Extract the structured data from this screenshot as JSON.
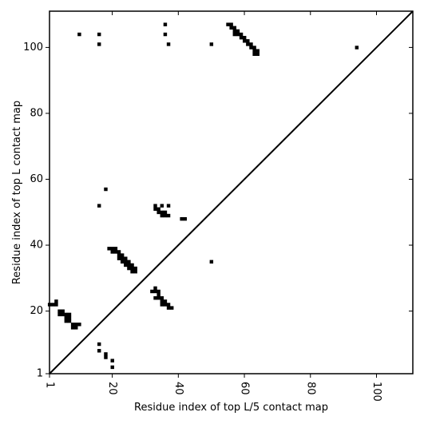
{
  "chart_data": {
    "type": "scatter",
    "xlabel": "Residue index of top L/5 contact map",
    "ylabel": "Residue index of top L contact map",
    "xlim": [
      1,
      111
    ],
    "ylim": [
      1,
      111
    ],
    "x_ticks": [
      1,
      20,
      40,
      60,
      80,
      100
    ],
    "y_ticks": [
      1,
      20,
      40,
      60,
      80,
      100
    ],
    "x_tick_labels": [
      "1",
      "20",
      "40",
      "60",
      "80",
      "100"
    ],
    "y_tick_labels": [
      "1",
      "20",
      "40",
      "60",
      "80",
      "100"
    ],
    "x_tick_rotation_deg": -90,
    "marker": "square",
    "marker_color": "#000000",
    "diagonal_line": true,
    "grid": false,
    "upper_triangle_top_L5": [
      [
        10,
        104
      ],
      [
        16,
        104
      ],
      [
        16,
        101
      ],
      [
        36,
        107
      ],
      [
        36,
        104
      ],
      [
        37,
        101
      ],
      [
        50,
        101
      ],
      [
        94,
        100
      ],
      [
        55,
        107
      ],
      [
        56,
        107
      ],
      [
        56,
        106
      ],
      [
        57,
        106
      ],
      [
        57,
        105
      ],
      [
        58,
        105
      ],
      [
        58,
        104
      ],
      [
        57,
        104
      ],
      [
        59,
        104
      ],
      [
        59,
        103
      ],
      [
        60,
        103
      ],
      [
        60,
        102
      ],
      [
        61,
        102
      ],
      [
        61,
        101
      ],
      [
        62,
        101
      ],
      [
        62,
        100
      ],
      [
        63,
        100
      ],
      [
        63,
        99
      ],
      [
        64,
        99
      ],
      [
        64,
        98
      ],
      [
        63,
        98
      ],
      [
        16,
        52
      ],
      [
        18,
        57
      ],
      [
        33,
        52
      ],
      [
        33,
        51
      ],
      [
        34,
        51
      ],
      [
        34,
        50
      ],
      [
        35,
        50
      ],
      [
        35,
        49
      ],
      [
        36,
        50
      ],
      [
        36,
        49
      ],
      [
        37,
        49
      ],
      [
        35,
        52
      ],
      [
        37,
        52
      ],
      [
        41,
        48
      ],
      [
        42,
        48
      ],
      [
        50,
        35
      ],
      [
        16,
        10
      ],
      [
        16,
        8
      ],
      [
        18,
        7
      ],
      [
        18,
        6
      ],
      [
        20,
        5
      ],
      [
        20,
        3
      ]
    ],
    "lower_triangle_top_L": [
      [
        1,
        22
      ],
      [
        2,
        22
      ],
      [
        3,
        23
      ],
      [
        3,
        22
      ],
      [
        4,
        20
      ],
      [
        4,
        19
      ],
      [
        5,
        20
      ],
      [
        5,
        19
      ],
      [
        6,
        18
      ],
      [
        6,
        17
      ],
      [
        7,
        18
      ],
      [
        7,
        17
      ],
      [
        8,
        16
      ],
      [
        8,
        15
      ],
      [
        9,
        16
      ],
      [
        9,
        15
      ],
      [
        10,
        16
      ],
      [
        6,
        19
      ],
      [
        7,
        19
      ],
      [
        19,
        39
      ],
      [
        20,
        39
      ],
      [
        21,
        39
      ],
      [
        20,
        38
      ],
      [
        21,
        38
      ],
      [
        22,
        38
      ],
      [
        22,
        37
      ],
      [
        23,
        37
      ],
      [
        22,
        36
      ],
      [
        23,
        36
      ],
      [
        24,
        36
      ],
      [
        23,
        35
      ],
      [
        24,
        35
      ],
      [
        25,
        35
      ],
      [
        24,
        34
      ],
      [
        25,
        34
      ],
      [
        26,
        34
      ],
      [
        25,
        33
      ],
      [
        26,
        33
      ],
      [
        27,
        33
      ],
      [
        26,
        32
      ],
      [
        27,
        32
      ],
      [
        32,
        26
      ],
      [
        33,
        27
      ],
      [
        33,
        26
      ],
      [
        34,
        26
      ],
      [
        34,
        25
      ],
      [
        33,
        24
      ],
      [
        34,
        24
      ],
      [
        35,
        24
      ],
      [
        35,
        23
      ],
      [
        36,
        23
      ],
      [
        35,
        22
      ],
      [
        36,
        22
      ],
      [
        37,
        22
      ],
      [
        37,
        21
      ],
      [
        38,
        21
      ]
    ]
  }
}
